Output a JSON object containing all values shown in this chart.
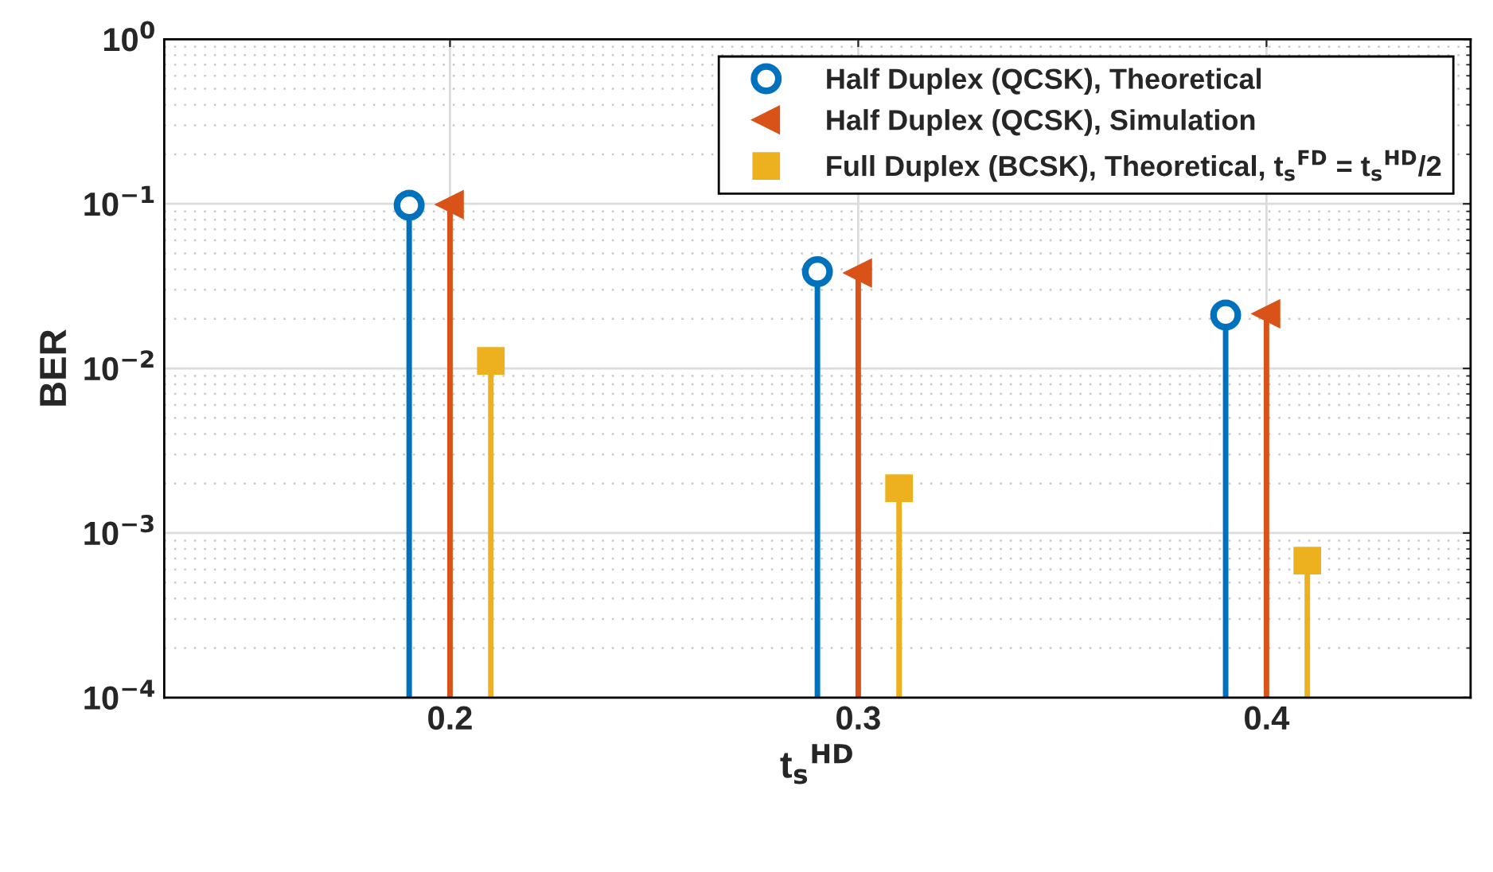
{
  "chart_data": {
    "type": "lollipop",
    "xlabel": "t$_{s}$$^{HD}$",
    "ylabel": "BER",
    "series": [
      {
        "name": "Half Duplex (QCSK), Theoretical",
        "color": "#0072bd",
        "marker": "circle",
        "x": [
          0.19,
          0.29,
          0.39
        ],
        "values": [
          0.098,
          0.0387,
          0.0211
        ]
      },
      {
        "name": "Half Duplex (QCSK), Simulation",
        "color": "#d95319",
        "marker": "triangle",
        "x": [
          0.2,
          0.3,
          0.4
        ],
        "values": [
          0.099,
          0.038,
          0.0215
        ]
      },
      {
        "name": "Full Duplex (BCSK), Theoretical, t$_{s}$$^{FD}$ = t$_{s}$$^{HD}$/2",
        "color": "#edb120",
        "marker": "square",
        "x": [
          0.21,
          0.31,
          0.41
        ],
        "values": [
          0.0111,
          0.00187,
          0.00068
        ]
      }
    ],
    "log": "y",
    "xlim": [
      0.13,
      0.45
    ],
    "xticks": [
      0.2,
      0.3,
      0.4
    ],
    "ylim": [
      0.0001,
      1
    ],
    "yticks": [
      {
        "value": 0.0001,
        "label": "10$^{−4}$"
      },
      {
        "value": 0.001,
        "label": "10$^{−3}$"
      },
      {
        "value": 0.01,
        "label": "10$^{−2}$"
      },
      {
        "value": 0.1,
        "label": "10$^{−1}$"
      },
      {
        "value": 1,
        "label": "10$^{0}$"
      }
    ],
    "grid": true,
    "legend": "top right"
  }
}
